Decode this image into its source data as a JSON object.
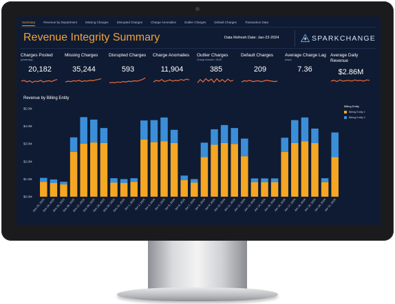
{
  "tabs": [
    {
      "label": "Summary",
      "active": true
    },
    {
      "label": "Revenue by Department",
      "active": false
    },
    {
      "label": "Missing Charges",
      "active": false
    },
    {
      "label": "Disrupted Charges",
      "active": false
    },
    {
      "label": "Charge Anomalies",
      "active": false
    },
    {
      "label": "Outlier Charges",
      "active": false
    },
    {
      "label": "Default Charges",
      "active": false
    },
    {
      "label": "Transaction Data",
      "active": false
    }
  ],
  "header": {
    "title": "Revenue Integrity Summary",
    "refresh": "Data Refresh Date: Jan-22-2024",
    "logo_text": "SPARKCHANGE"
  },
  "kpis": [
    {
      "label": "Charges Posted",
      "sub": "(yesterday)",
      "value": "20,182",
      "spark": [
        0.5,
        0.6,
        0.4,
        0.55,
        0.35,
        0.5,
        0.45,
        0.6,
        0.4,
        0.5,
        0.55,
        0.45,
        0.6,
        0.7
      ]
    },
    {
      "label": "Missing Charges",
      "sub": "",
      "value": "35,244",
      "spark": [
        0.4,
        0.5,
        0.45,
        0.55,
        0.5,
        0.6,
        0.45,
        0.55,
        0.5,
        0.6,
        0.55,
        0.65,
        0.7,
        0.8
      ]
    },
    {
      "label": "Disrupted Charges",
      "sub": "",
      "value": "593",
      "spark": [
        0.3,
        0.35,
        0.3,
        0.4,
        0.35,
        0.45,
        0.4,
        0.5,
        0.45,
        0.55,
        0.5,
        0.6,
        0.7,
        0.9
      ]
    },
    {
      "label": "Charge Anomalies",
      "sub": "",
      "value": "11,904",
      "spark": [
        0.4,
        0.6,
        0.5,
        0.7,
        0.45,
        0.55,
        0.65,
        0.5,
        0.6,
        0.55,
        0.7,
        0.6,
        0.75,
        0.65
      ]
    },
    {
      "label": "Outlier Charges",
      "sub": "Charge Amount > $10K",
      "value": "385",
      "spark": [
        0.3,
        0.7,
        0.4,
        0.8,
        0.5,
        0.75,
        0.35,
        0.8,
        0.45,
        0.7,
        0.4,
        0.75,
        0.5,
        0.6
      ]
    },
    {
      "label": "Default Charges",
      "sub": "",
      "value": "209",
      "spark": [
        0.4,
        0.55,
        0.5,
        0.6,
        0.45,
        0.5,
        0.55,
        0.45,
        0.5,
        0.6,
        0.55,
        0.5,
        0.45,
        0.5
      ]
    },
    {
      "label": "Average Charge Lag",
      "sub": "(days)",
      "value": "7.36",
      "spark": []
    },
    {
      "label": "Average Daily Revenue",
      "sub": "",
      "value": "$2.86M",
      "spark": [
        0.5,
        0.6,
        0.45,
        0.65,
        0.5,
        0.55,
        0.6,
        0.5,
        0.65,
        0.55,
        0.6,
        0.5,
        0.65,
        0.6
      ]
    }
  ],
  "chart_data": {
    "type": "bar",
    "stacked": true,
    "title": "Revenue by Billing Entity",
    "yticks": [
      "$5.0M",
      "$4.0M",
      "$3.0M",
      "$2.0M",
      "$1.0M",
      "$0.0M"
    ],
    "ylim": [
      0,
      5
    ],
    "legend_title": "Billing Entity",
    "categories": [
      "Dec 23, 2023",
      "Dec 24, 2023",
      "Dec 25, 2023",
      "Dec 26, 2023",
      "Dec 27, 2023",
      "Dec 28, 2023",
      "Dec 29, 2023",
      "Dec 30, 2023",
      "Dec 31, 2023",
      "Jan 1, 2024",
      "Jan 2, 2024",
      "Jan 3, 2024",
      "Jan 4, 2024",
      "Jan 5, 2024",
      "Jan 6, 2024",
      "Jan 7, 2024",
      "Jan 8, 2024",
      "Jan 9, 2024",
      "Jan 10, 2024",
      "Jan 11, 2024",
      "Jan 12, 2024",
      "Jan 13, 2024",
      "Jan 14, 2024",
      "Jan 15, 2024",
      "Jan 16, 2024",
      "Jan 17, 2024",
      "Jan 18, 2024",
      "Jan 19, 2024",
      "Jan 20, 2024",
      "Jan 21, 2024"
    ],
    "series": [
      {
        "name": "Billing Entity 1",
        "color": "#f5a623",
        "values": [
          0.85,
          0.78,
          0.7,
          2.55,
          3.02,
          3.08,
          3.05,
          0.8,
          0.78,
          0.85,
          3.25,
          3.1,
          3.15,
          3.05,
          0.95,
          0.8,
          2.25,
          2.95,
          3.05,
          3.0,
          2.3,
          0.82,
          0.82,
          0.82,
          2.55,
          3.05,
          3.15,
          3.05,
          0.83,
          2.25
        ]
      },
      {
        "name": "Billing Entity 2",
        "color": "#3b8fd9",
        "values": [
          0.22,
          0.2,
          0.15,
          0.82,
          1.5,
          1.3,
          0.85,
          0.25,
          0.22,
          0.2,
          1.08,
          1.25,
          1.35,
          0.75,
          0.25,
          0.2,
          0.82,
          0.88,
          1.02,
          0.9,
          1.0,
          0.22,
          0.22,
          0.22,
          0.8,
          1.3,
          1.35,
          0.82,
          0.22,
          1.4
        ]
      }
    ]
  }
}
